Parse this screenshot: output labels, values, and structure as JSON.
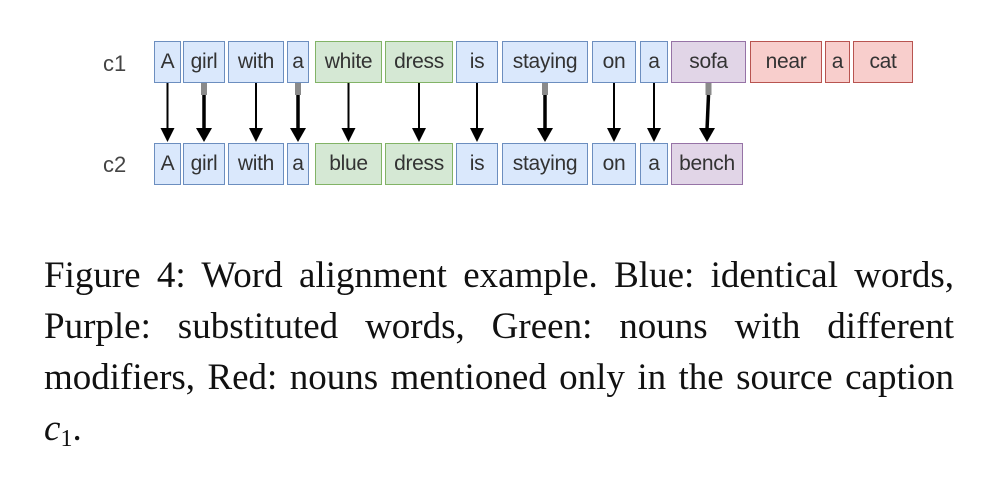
{
  "diagram": {
    "row_labels": {
      "c1": "c1",
      "c2": "c2"
    },
    "c1_tokens": [
      {
        "text": "A",
        "category": "blue"
      },
      {
        "text": "girl",
        "category": "blue"
      },
      {
        "text": "with",
        "category": "blue"
      },
      {
        "text": "a",
        "category": "blue"
      },
      {
        "text": "white",
        "category": "green"
      },
      {
        "text": "dress",
        "category": "green"
      },
      {
        "text": "is",
        "category": "blue"
      },
      {
        "text": "staying",
        "category": "blue"
      },
      {
        "text": "on",
        "category": "blue"
      },
      {
        "text": "a",
        "category": "blue"
      },
      {
        "text": "sofa",
        "category": "purple"
      },
      {
        "text": "near",
        "category": "red"
      },
      {
        "text": "a",
        "category": "red"
      },
      {
        "text": "cat",
        "category": "red"
      }
    ],
    "c2_tokens": [
      {
        "text": "A",
        "category": "blue"
      },
      {
        "text": "girl",
        "category": "blue"
      },
      {
        "text": "with",
        "category": "blue"
      },
      {
        "text": "a",
        "category": "blue"
      },
      {
        "text": "blue",
        "category": "green"
      },
      {
        "text": "dress",
        "category": "green"
      },
      {
        "text": "is",
        "category": "blue"
      },
      {
        "text": "staying",
        "category": "blue"
      },
      {
        "text": "on",
        "category": "blue"
      },
      {
        "text": "a",
        "category": "blue"
      },
      {
        "text": "bench",
        "category": "purple"
      }
    ],
    "alignments": [
      [
        0,
        0
      ],
      [
        1,
        1
      ],
      [
        2,
        2
      ],
      [
        3,
        3
      ],
      [
        4,
        4
      ],
      [
        5,
        5
      ],
      [
        6,
        6
      ],
      [
        7,
        7
      ],
      [
        8,
        8
      ],
      [
        9,
        9
      ],
      [
        10,
        10
      ]
    ],
    "colors": {
      "blue": {
        "fill": "#dae8fc",
        "stroke": "#6c8ebf"
      },
      "green": {
        "fill": "#d5e8d4",
        "stroke": "#82b366"
      },
      "purple": {
        "fill": "#e1d5e7",
        "stroke": "#9673a6"
      },
      "red": {
        "fill": "#f8cecc",
        "stroke": "#b85450"
      }
    }
  },
  "caption": {
    "text": "Figure 4:  Word alignment example.  Blue: identical words, Purple: substituted words, Green: nouns with different modifiers, Red: nouns mentioned only in the source caption ",
    "var": "c",
    "sub": "1",
    "end": "."
  }
}
